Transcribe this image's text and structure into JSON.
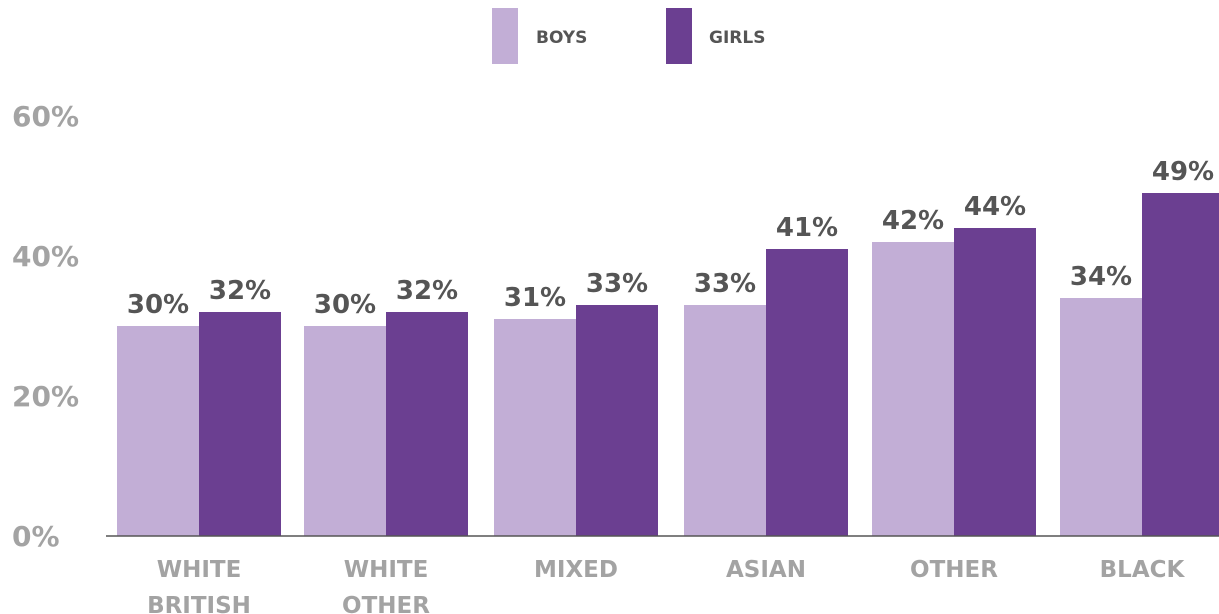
{
  "chart_data": {
    "type": "bar",
    "title": "",
    "xlabel": "",
    "ylabel": "",
    "categories": [
      [
        "WHITE",
        "BRITISH"
      ],
      [
        "WHITE",
        "OTHER"
      ],
      [
        "MIXED"
      ],
      [
        "ASIAN"
      ],
      [
        "OTHER"
      ],
      [
        "BLACK"
      ]
    ],
    "series": [
      {
        "name": "BOYS",
        "color": "#c2aed6",
        "values": [
          30,
          30,
          31,
          33,
          42,
          34
        ],
        "labels": [
          "30%",
          "30%",
          "31%",
          "33%",
          "42%",
          "34%"
        ]
      },
      {
        "name": "GIRLS",
        "color": "#6b3f91",
        "values": [
          32,
          32,
          33,
          41,
          44,
          49
        ],
        "labels": [
          "32%",
          "32%",
          "33%",
          "41%",
          "44%",
          "49%"
        ]
      }
    ],
    "ylim": [
      0,
      60
    ],
    "yticks": [
      0,
      20,
      40,
      60
    ],
    "ytick_labels": [
      "0%",
      "20%",
      "40%",
      "60%"
    ],
    "grid": false,
    "legend_position": "top-center",
    "axis_color": "#555555"
  }
}
